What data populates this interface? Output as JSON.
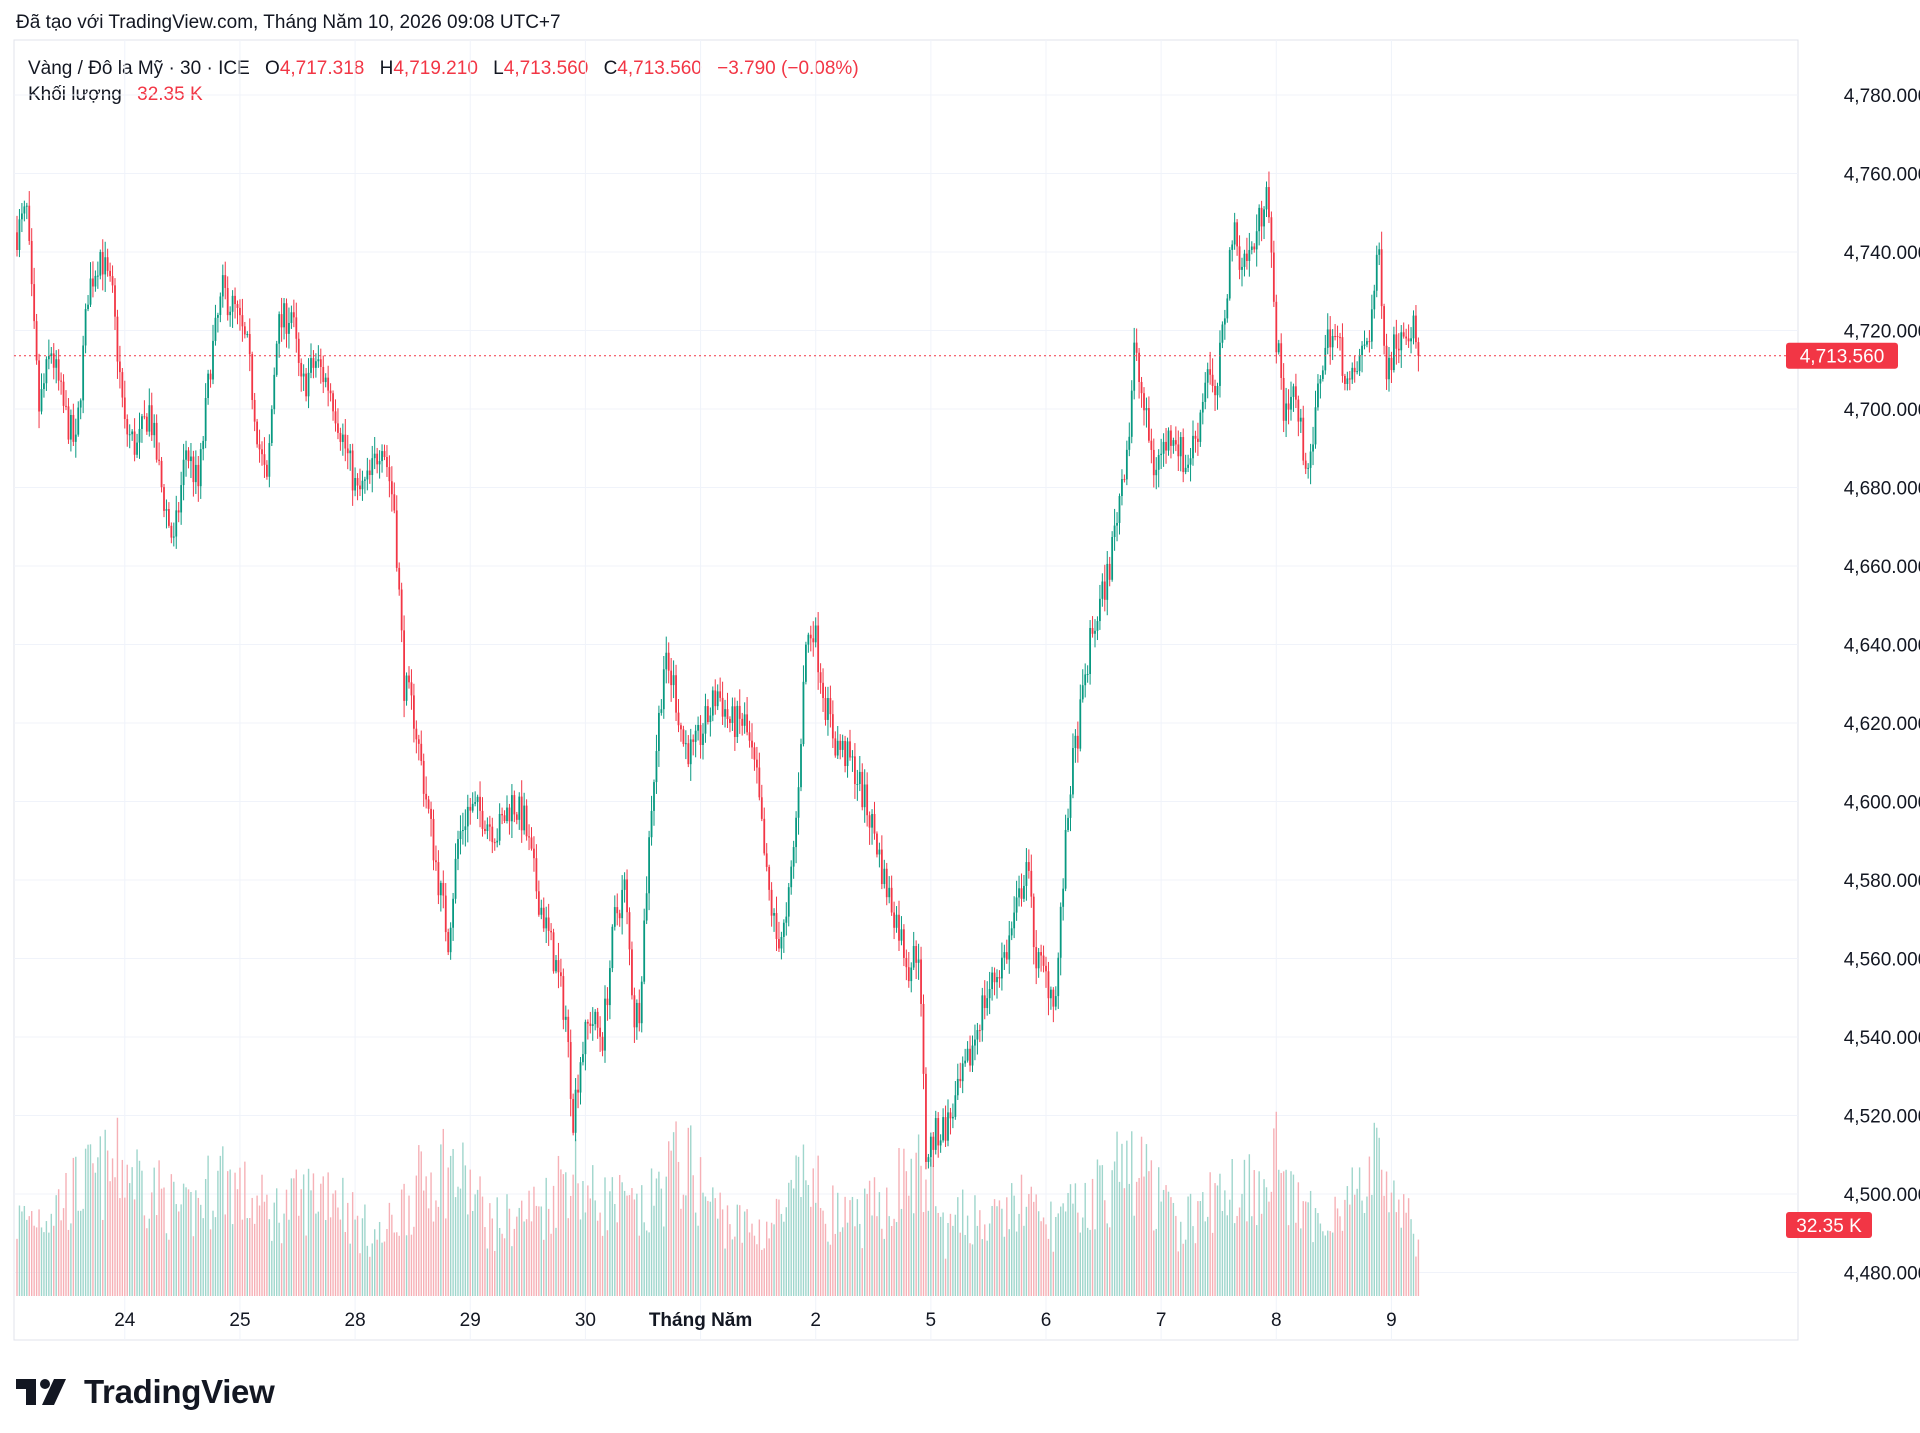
{
  "header": {
    "created_with": "Đã tạo với TradingView.com, Tháng Năm 10, 2026 09:08 UTC+7"
  },
  "legend": {
    "symbol": "Vàng / Đô la Mỹ · 30 · ICE",
    "open_label": "O",
    "open_value": "4,717.318",
    "high_label": "H",
    "high_value": "4,719.210",
    "low_label": "L",
    "low_value": "4,713.560",
    "close_label": "C",
    "close_value": "4,713.560",
    "change": "−3.790 (−0.08%)",
    "volume_label": "Khối lượng",
    "volume_value": "32.35 K"
  },
  "price_tag": "4,713.560",
  "volume_tag": "32.35 K",
  "logo": {
    "text": "TradingView"
  },
  "colors": {
    "up": "#089981",
    "down": "#f23645",
    "grid": "#f0f3fa",
    "text": "#131722"
  },
  "chart_data": {
    "type": "candlestick",
    "title": "",
    "y_axis": {
      "min": 4474,
      "max": 4794,
      "position": "right",
      "ticks": [
        4480,
        4500,
        4520,
        4540,
        4560,
        4580,
        4600,
        4620,
        4640,
        4660,
        4680,
        4700,
        4720,
        4740,
        4760,
        4780
      ],
      "tick_labels": [
        "4,480.000",
        "4,500.000",
        "4,520.000",
        "4,540.000",
        "4,560.000",
        "4,580.000",
        "4,600.000",
        "4,620.000",
        "4,640.000",
        "4,660.000",
        "4,680.000",
        "4,700.000",
        "4,720.000",
        "4,740.000",
        "4,760.000",
        "4,780.000"
      ]
    },
    "x_axis": {
      "labels": [
        {
          "label": "24",
          "index": 50,
          "bold": false
        },
        {
          "label": "25",
          "index": 97,
          "bold": false
        },
        {
          "label": "28",
          "index": 144,
          "bold": false
        },
        {
          "label": "29",
          "index": 191,
          "bold": false
        },
        {
          "label": "30",
          "index": 238,
          "bold": false
        },
        {
          "label": "Tháng Năm",
          "index": 285,
          "bold": true
        },
        {
          "label": "2",
          "index": 332,
          "bold": false
        },
        {
          "label": "5",
          "index": 379,
          "bold": false
        },
        {
          "label": "6",
          "index": 426,
          "bold": false
        },
        {
          "label": "7",
          "index": 473,
          "bold": false
        },
        {
          "label": "8",
          "index": 520,
          "bold": false
        },
        {
          "label": "9",
          "index": 567,
          "bold": false
        }
      ],
      "first_index": 6,
      "last_index": 578
    },
    "last_price": 4713.56,
    "grid": true,
    "anchors": [
      [
        6,
        4745
      ],
      [
        10,
        4750
      ],
      [
        12,
        4728
      ],
      [
        15,
        4700
      ],
      [
        20,
        4715
      ],
      [
        25,
        4700
      ],
      [
        30,
        4690
      ],
      [
        35,
        4730
      ],
      [
        40,
        4740
      ],
      [
        45,
        4728
      ],
      [
        50,
        4695
      ],
      [
        55,
        4690
      ],
      [
        60,
        4700
      ],
      [
        65,
        4680
      ],
      [
        70,
        4665
      ],
      [
        75,
        4690
      ],
      [
        80,
        4680
      ],
      [
        85,
        4712
      ],
      [
        90,
        4730
      ],
      [
        95,
        4725
      ],
      [
        100,
        4715
      ],
      [
        105,
        4690
      ],
      [
        108,
        4680
      ],
      [
        112,
        4720
      ],
      [
        118,
        4725
      ],
      [
        122,
        4705
      ],
      [
        128,
        4712
      ],
      [
        134,
        4705
      ],
      [
        140,
        4690
      ],
      [
        145,
        4678
      ],
      [
        150,
        4682
      ],
      [
        155,
        4693
      ],
      [
        160,
        4675
      ],
      [
        164,
        4630
      ],
      [
        168,
        4622
      ],
      [
        172,
        4605
      ],
      [
        178,
        4580
      ],
      [
        182,
        4565
      ],
      [
        186,
        4590
      ],
      [
        190,
        4598
      ],
      [
        196,
        4597
      ],
      [
        202,
        4592
      ],
      [
        208,
        4600
      ],
      [
        213,
        4595
      ],
      [
        218,
        4578
      ],
      [
        222,
        4568
      ],
      [
        226,
        4558
      ],
      [
        230,
        4545
      ],
      [
        233,
        4520
      ],
      [
        236,
        4535
      ],
      [
        240,
        4545
      ],
      [
        245,
        4540
      ],
      [
        250,
        4570
      ],
      [
        254,
        4578
      ],
      [
        258,
        4545
      ],
      [
        260,
        4548
      ],
      [
        265,
        4600
      ],
      [
        270,
        4635
      ],
      [
        274,
        4630
      ],
      [
        278,
        4615
      ],
      [
        282,
        4612
      ],
      [
        287,
        4620
      ],
      [
        292,
        4628
      ],
      [
        297,
        4620
      ],
      [
        303,
        4620
      ],
      [
        308,
        4605
      ],
      [
        312,
        4580
      ],
      [
        316,
        4565
      ],
      [
        320,
        4568
      ],
      [
        324,
        4595
      ],
      [
        328,
        4640
      ],
      [
        331,
        4645
      ],
      [
        336,
        4625
      ],
      [
        340,
        4615
      ],
      [
        344,
        4612
      ],
      [
        348,
        4608
      ],
      [
        352,
        4600
      ],
      [
        356,
        4592
      ],
      [
        360,
        4580
      ],
      [
        365,
        4570
      ],
      [
        370,
        4558
      ],
      [
        374,
        4563
      ],
      [
        377,
        4510
      ],
      [
        381,
        4515
      ],
      [
        386,
        4518
      ],
      [
        390,
        4525
      ],
      [
        395,
        4535
      ],
      [
        400,
        4548
      ],
      [
        405,
        4555
      ],
      [
        410,
        4562
      ],
      [
        415,
        4575
      ],
      [
        418,
        4585
      ],
      [
        422,
        4560
      ],
      [
        426,
        4555
      ],
      [
        430,
        4550
      ],
      [
        433,
        4580
      ],
      [
        436,
        4605
      ],
      [
        440,
        4622
      ],
      [
        444,
        4640
      ],
      [
        448,
        4650
      ],
      [
        452,
        4660
      ],
      [
        456,
        4678
      ],
      [
        460,
        4695
      ],
      [
        462,
        4715
      ],
      [
        466,
        4700
      ],
      [
        470,
        4685
      ],
      [
        474,
        4690
      ],
      [
        478,
        4695
      ],
      [
        483,
        4685
      ],
      [
        488,
        4695
      ],
      [
        492,
        4712
      ],
      [
        495,
        4700
      ],
      [
        499,
        4725
      ],
      [
        502,
        4745
      ],
      [
        506,
        4738
      ],
      [
        510,
        4740
      ],
      [
        514,
        4750
      ],
      [
        516,
        4760
      ],
      [
        519,
        4725
      ],
      [
        523,
        4700
      ],
      [
        527,
        4705
      ],
      [
        531,
        4690
      ],
      [
        534,
        4685
      ],
      [
        538,
        4710
      ],
      [
        542,
        4720
      ],
      [
        546,
        4715
      ],
      [
        550,
        4705
      ],
      [
        554,
        4712
      ],
      [
        558,
        4720
      ],
      [
        562,
        4740
      ],
      [
        565,
        4710
      ],
      [
        568,
        4716
      ],
      [
        572,
        4722
      ],
      [
        576,
        4720
      ],
      [
        578,
        4713.56
      ]
    ],
    "volume_anchors": [
      [
        6,
        17000
      ],
      [
        20,
        20000
      ],
      [
        35,
        26000
      ],
      [
        50,
        30000
      ],
      [
        60,
        25000
      ],
      [
        75,
        18000
      ],
      [
        90,
        28000
      ],
      [
        100,
        22000
      ],
      [
        110,
        19000
      ],
      [
        120,
        21000
      ],
      [
        135,
        26000
      ],
      [
        145,
        16000
      ],
      [
        155,
        13000
      ],
      [
        165,
        22000
      ],
      [
        180,
        30000
      ],
      [
        190,
        25000
      ],
      [
        200,
        16000
      ],
      [
        210,
        18000
      ],
      [
        222,
        21000
      ],
      [
        232,
        30000
      ],
      [
        240,
        22000
      ],
      [
        250,
        21000
      ],
      [
        262,
        18000
      ],
      [
        272,
        28000
      ],
      [
        278,
        31000
      ],
      [
        290,
        20000
      ],
      [
        300,
        16000
      ],
      [
        310,
        15000
      ],
      [
        320,
        19000
      ],
      [
        328,
        28000
      ],
      [
        335,
        21000
      ],
      [
        345,
        16000
      ],
      [
        360,
        21000
      ],
      [
        370,
        28000
      ],
      [
        378,
        26000
      ],
      [
        385,
        14000
      ],
      [
        395,
        19000
      ],
      [
        405,
        16000
      ],
      [
        415,
        22000
      ],
      [
        425,
        16000
      ],
      [
        435,
        18000
      ],
      [
        448,
        24000
      ],
      [
        460,
        30000
      ],
      [
        468,
        26000
      ],
      [
        478,
        16000
      ],
      [
        490,
        19000
      ],
      [
        500,
        25000
      ],
      [
        512,
        26000
      ],
      [
        520,
        33000
      ],
      [
        526,
        21000
      ],
      [
        535,
        17000
      ],
      [
        545,
        21000
      ],
      [
        555,
        24000
      ],
      [
        562,
        31000
      ],
      [
        570,
        22000
      ],
      [
        578,
        10000
      ]
    ],
    "volume_scale_max": 80000,
    "volume_label_value": "32.35 K"
  }
}
